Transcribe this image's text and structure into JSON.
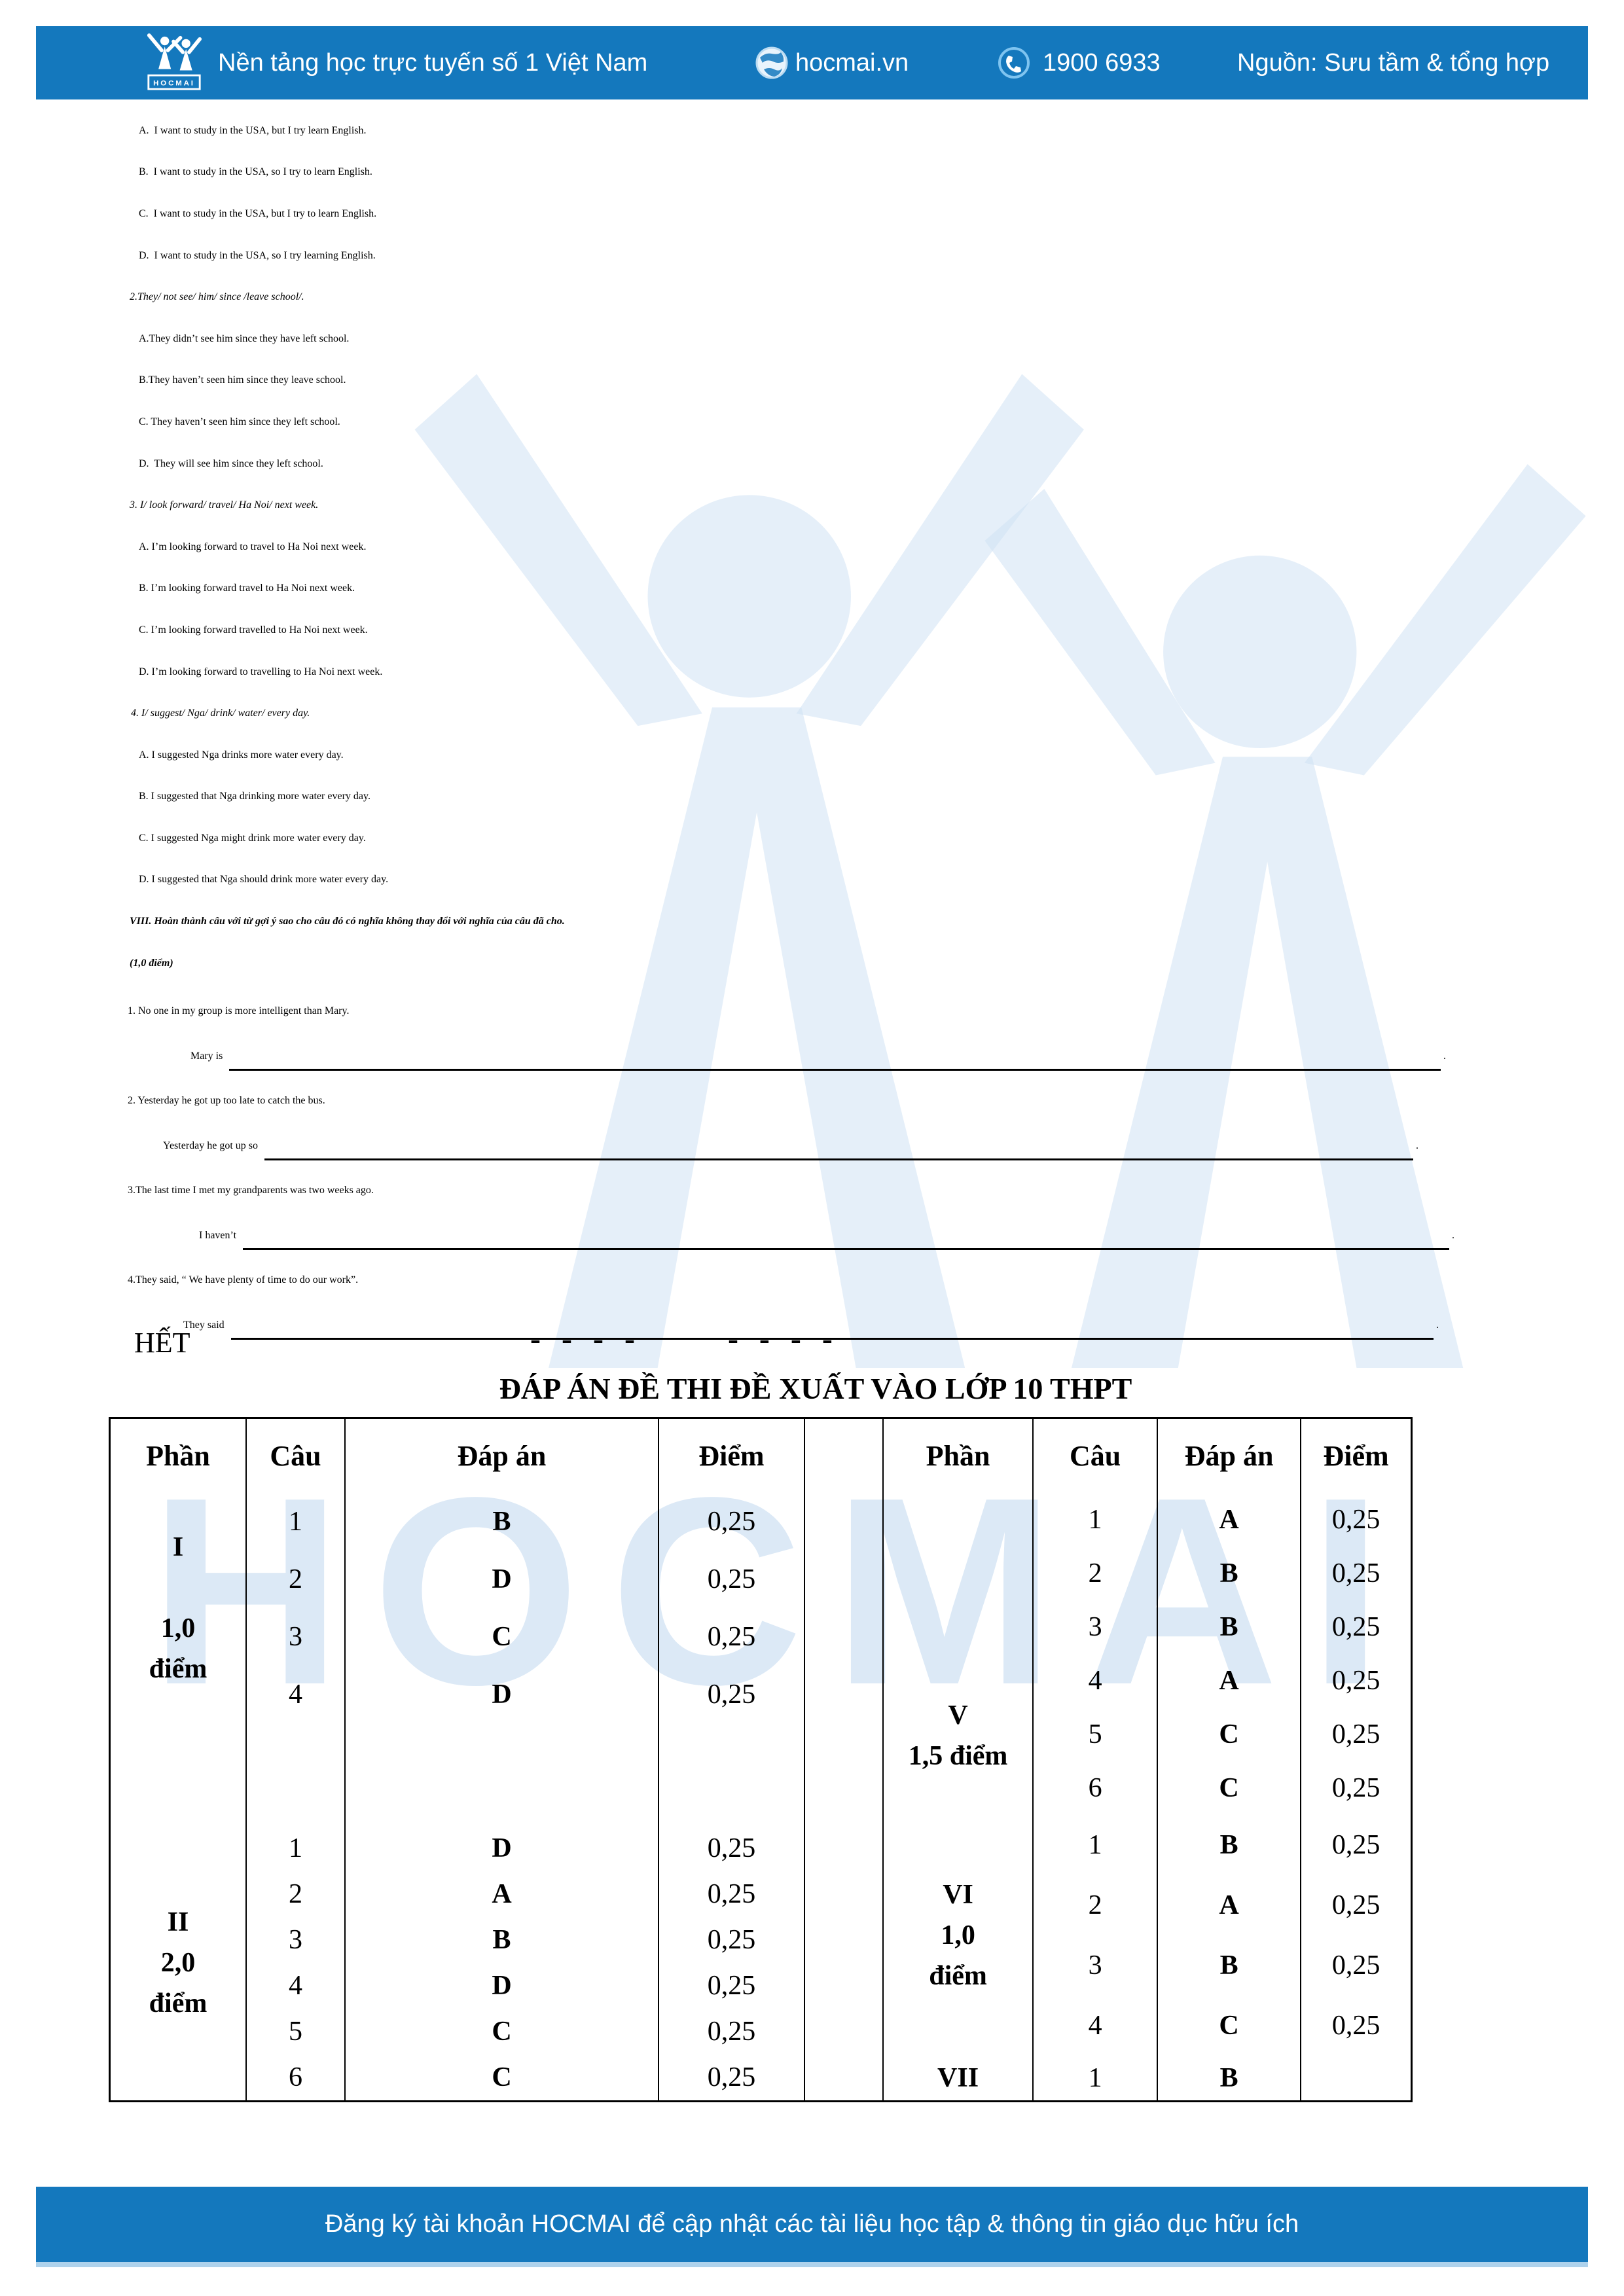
{
  "header": {
    "logo_text": "HOCMAI",
    "tagline": "Nền tảng học trực tuyến số 1 Việt Nam",
    "website": "hocmai.vn",
    "phone": "1900 6933",
    "source": "Nguồn: Sưu tầm & tổng hợp",
    "bar_color": "#1478bd"
  },
  "mc_blocks": [
    {
      "prompt": "",
      "options": [
        "A.  I want to study in the USA, but I try learn English.",
        "B.  I want to study in the USA, so I try to learn English.",
        "C.  I want to study in the USA, but I try to learn English.",
        "D.  I want to study in the USA, so I try learning English."
      ]
    },
    {
      "prompt": "2.They/ not see/ him/ since /leave school/.",
      "options": [
        "A.They didn’t see him since they have left school.",
        "B.They haven’t seen him since they leave school.",
        "C. They haven’t seen him since they left school.",
        "D.  They will see him since they left school."
      ]
    },
    {
      "prompt": "3. I/ look forward/ travel/ Ha Noi/ next week.",
      "options": [
        "A. I’m looking forward to travel to Ha Noi next week.",
        "B. I’m looking forward travel to Ha Noi next week.",
        "C. I’m looking forward travelled to Ha Noi next week.",
        "D. I’m looking forward to travelling to Ha Noi next week."
      ]
    },
    {
      "prompt": "4. I/ suggest/ Nga/ drink/ water/ every day.",
      "options": [
        "A. I suggested Nga drinks more water every day.",
        "B. I suggested that Nga drinking more water every day.",
        "C. I suggested Nga might drink more water every day.",
        "D. I suggested that Nga should drink more water every day."
      ]
    }
  ],
  "section_viii": {
    "heading": "VIII. Hoàn thành câu với từ gợi ý sao cho câu đó có nghĩa không thay đổi với nghĩa của câu đã cho.",
    "points": "(1,0 điểm)",
    "items": [
      {
        "given": "1. No one in my group is more intelligent than Mary.",
        "stem": "Mary is"
      },
      {
        "given": "2. Yesterday he got up too late to catch the bus.",
        "stem": "Yesterday he got up so"
      },
      {
        "given": "3.The last time I met my grandparents was two weeks ago.",
        "stem": "I haven’t"
      },
      {
        "given": "4.They said, “ We have plenty of time to do our work”.",
        "stem": "They said"
      }
    ]
  },
  "end_label": "HẾT",
  "dash_separator": "- - - -      - - - -",
  "answer_table": {
    "title": "ĐÁP ÁN ĐỀ THI ĐỀ XUẤT VÀO LỚP 10 THPT",
    "headers": [
      "Phần",
      "Câu",
      "Đáp án",
      "Điểm"
    ],
    "left_sections": [
      {
        "label_lines": [
          "I",
          "",
          "1,0",
          "điểm"
        ],
        "rows": [
          [
            "1",
            "B",
            "0,25"
          ],
          [
            "2",
            "D",
            "0,25"
          ],
          [
            "3",
            "C",
            "0,25"
          ],
          [
            "4",
            "D",
            "0,25"
          ]
        ]
      },
      {
        "label_lines": [
          "II",
          "2,0",
          "điểm"
        ],
        "rows": [
          [
            "1",
            "D",
            "0,25"
          ],
          [
            "2",
            "A",
            "0,25"
          ],
          [
            "3",
            "B",
            "0,25"
          ],
          [
            "4",
            "D",
            "0,25"
          ],
          [
            "5",
            "C",
            "0,25"
          ],
          [
            "6",
            "C",
            "0,25"
          ]
        ]
      }
    ],
    "right_sections": [
      {
        "label_lines": [
          "V",
          "1,5 điểm"
        ],
        "rows": [
          [
            "1",
            "A",
            "0,25"
          ],
          [
            "2",
            "B",
            "0,25"
          ],
          [
            "3",
            "B",
            "0,25"
          ],
          [
            "4",
            "A",
            "0,25"
          ],
          [
            "5",
            "C",
            "0,25"
          ],
          [
            "6",
            "C",
            "0,25"
          ]
        ]
      },
      {
        "label_lines": [
          "VI",
          "1,0",
          "điểm"
        ],
        "rows": [
          [
            "1",
            "B",
            "0,25"
          ],
          [
            "2",
            "A",
            "0,25"
          ],
          [
            "3",
            "B",
            "0,25"
          ],
          [
            "4",
            "C",
            "0,25"
          ]
        ]
      },
      {
        "label_lines": [
          "VII"
        ],
        "rows": [
          [
            "1",
            "B",
            ""
          ]
        ]
      }
    ]
  },
  "footer": {
    "text": "Đăng ký tài khoản HOCMAI để cập nhật các tài liệu học tập & thông tin giáo dục hữu ích"
  },
  "watermark": {
    "text": "HOCMAI"
  }
}
